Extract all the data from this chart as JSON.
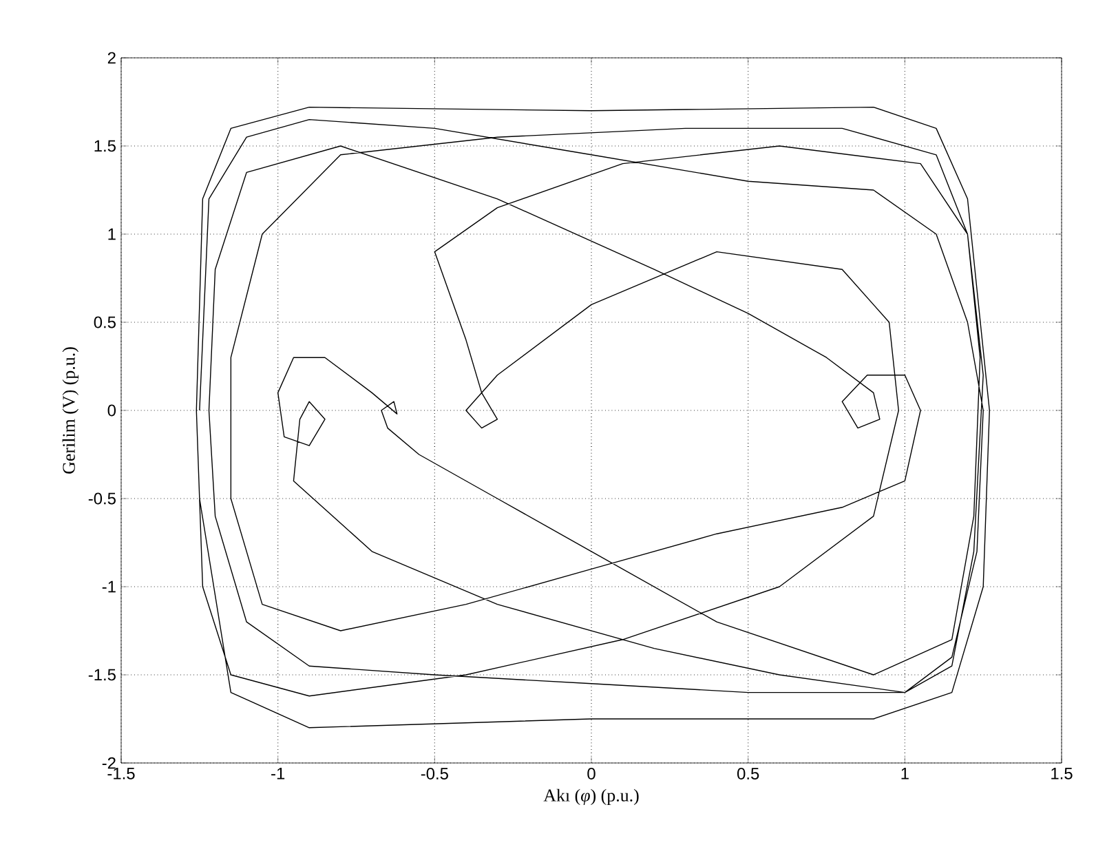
{
  "chart_data": {
    "type": "line",
    "xlabel": "Akı (*φ*) (p.u.)",
    "ylabel": "Gerilim (V) (p.u.)",
    "xlim": [
      -1.5,
      1.5
    ],
    "ylim": [
      -2,
      2
    ],
    "xticks": [
      -1.5,
      -1,
      -0.5,
      0,
      0.5,
      1,
      1.5
    ],
    "yticks": [
      -2,
      -1.5,
      -1,
      -0.5,
      0,
      0.5,
      1,
      1.5,
      2
    ],
    "grid": true,
    "marker": "none",
    "line_style": "solid",
    "series": [
      {
        "color": "#000000",
        "x": [
          -1.25,
          -1.22,
          -1.1,
          -0.9,
          -0.5,
          0,
          0.5,
          0.9,
          1.1,
          1.2,
          1.25,
          1.23,
          1.15,
          1.0,
          0.5,
          0,
          -0.5,
          -0.9,
          -1.1,
          -1.2,
          -1.22,
          -1.2,
          -1.1,
          -0.8,
          -0.3,
          0.2,
          0.5,
          0.75,
          0.9,
          0.92,
          0.85,
          0.8,
          0.88,
          1.0,
          1.05,
          1.0,
          0.8,
          0.4,
          0,
          -0.4,
          -0.8,
          -1.05,
          -1.15,
          -1.15,
          -1.05,
          -0.8,
          -0.3,
          0.3,
          0.8,
          1.1,
          1.2,
          1.24,
          1.22,
          1.15,
          0.9,
          0.4,
          0,
          -0.3,
          -0.55,
          -0.65,
          -0.67,
          -0.63,
          -0.62,
          -0.7,
          -0.85,
          -0.95,
          -1.0,
          -0.98,
          -0.9,
          -0.85,
          -0.9,
          -0.93,
          -0.95,
          -0.7,
          -0.3,
          0.2,
          0.6,
          1.0,
          1.15,
          1.22,
          1.25,
          1.2,
          1.05,
          0.6,
          0.1,
          -0.3,
          -0.5,
          -0.4,
          -0.35,
          -0.3,
          -0.35,
          -0.4,
          -0.3,
          0,
          0.4,
          0.8,
          0.95,
          0.98,
          0.9,
          0.6,
          0.1,
          -0.4,
          -0.9,
          -1.15,
          -1.24,
          -1.26,
          -1.24,
          -1.15,
          -0.9,
          0,
          0.9,
          1.1,
          1.2,
          1.27,
          1.25,
          1.15,
          0.9,
          0,
          -0.9,
          -1.15,
          -1.25
        ],
        "values": [
          0,
          1.2,
          1.55,
          1.65,
          1.6,
          1.45,
          1.3,
          1.25,
          1.0,
          0.5,
          0,
          -0.8,
          -1.4,
          -1.6,
          -1.6,
          -1.55,
          -1.5,
          -1.45,
          -1.2,
          -0.6,
          0,
          0.8,
          1.35,
          1.5,
          1.2,
          0.8,
          0.55,
          0.3,
          0.1,
          -0.05,
          -0.1,
          0.05,
          0.2,
          0.2,
          0,
          -0.4,
          -0.55,
          -0.7,
          -0.9,
          -1.1,
          -1.25,
          -1.1,
          -0.5,
          0.3,
          1.0,
          1.45,
          1.55,
          1.6,
          1.6,
          1.45,
          1.0,
          0.3,
          -0.6,
          -1.3,
          -1.5,
          -1.2,
          -0.8,
          -0.5,
          -0.25,
          -0.1,
          0,
          0.05,
          -0.02,
          0.1,
          0.3,
          0.3,
          0.1,
          -0.15,
          -0.2,
          -0.05,
          0.05,
          -0.05,
          -0.4,
          -0.8,
          -1.1,
          -1.35,
          -1.5,
          -1.6,
          -1.45,
          -0.8,
          0.2,
          1.0,
          1.4,
          1.5,
          1.4,
          1.15,
          0.9,
          0.4,
          0.1,
          -0.05,
          -0.1,
          0,
          0.2,
          0.6,
          0.9,
          0.8,
          0.5,
          0,
          -0.6,
          -1.0,
          -1.3,
          -1.5,
          -1.62,
          -1.5,
          -1.0,
          0,
          1.2,
          1.6,
          1.72,
          1.7,
          1.72,
          1.6,
          1.2,
          0,
          -1.0,
          -1.6,
          -1.75,
          -1.75,
          -1.8,
          -1.6,
          -0.5
        ]
      }
    ]
  }
}
